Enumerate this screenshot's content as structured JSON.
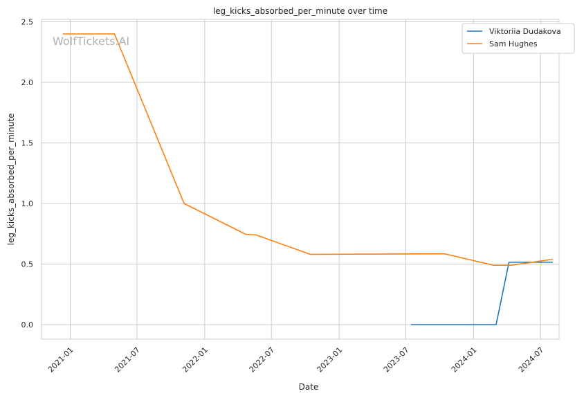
{
  "watermark": "WolfTickets.AI",
  "chart_data": {
    "type": "line",
    "title": "leg_kicks_absorbed_per_minute over time",
    "xlabel": "Date",
    "ylabel": "leg_kicks_absorbed_per_minute",
    "xlim": [
      "2020-10-15",
      "2024-08-20"
    ],
    "ylim": [
      -0.12,
      2.52
    ],
    "x_ticks": [
      "2021-01",
      "2021-07",
      "2022-01",
      "2022-07",
      "2023-01",
      "2023-07",
      "2024-01",
      "2024-07"
    ],
    "x_tick_dates": [
      "2021-01-01",
      "2021-07-01",
      "2022-01-01",
      "2022-07-01",
      "2023-01-01",
      "2023-07-01",
      "2024-01-01",
      "2024-07-01"
    ],
    "y_ticks": [
      "0.0",
      "0.5",
      "1.0",
      "1.5",
      "2.0",
      "2.5"
    ],
    "y_tick_values": [
      0.0,
      0.5,
      1.0,
      1.5,
      2.0,
      2.5
    ],
    "grid": true,
    "legend_position": "top-right",
    "series": [
      {
        "name": "Viktoriia Dudakova",
        "color": "#1f77b4",
        "points": [
          {
            "x": "2023-07-15",
            "y": 0.0
          },
          {
            "x": "2024-03-02",
            "y": 0.0
          },
          {
            "x": "2024-04-06",
            "y": 0.515
          },
          {
            "x": "2024-08-03",
            "y": 0.515
          }
        ]
      },
      {
        "name": "Sam Hughes",
        "color": "#ff7f0e",
        "points": [
          {
            "x": "2020-12-12",
            "y": 2.4
          },
          {
            "x": "2021-05-01",
            "y": 2.4
          },
          {
            "x": "2021-11-06",
            "y": 1.0
          },
          {
            "x": "2022-04-23",
            "y": 0.745
          },
          {
            "x": "2022-05-21",
            "y": 0.74
          },
          {
            "x": "2022-10-15",
            "y": 0.58
          },
          {
            "x": "2023-10-14",
            "y": 0.585
          },
          {
            "x": "2024-02-24",
            "y": 0.49
          },
          {
            "x": "2024-04-13",
            "y": 0.49
          },
          {
            "x": "2024-08-03",
            "y": 0.54
          }
        ]
      }
    ]
  }
}
